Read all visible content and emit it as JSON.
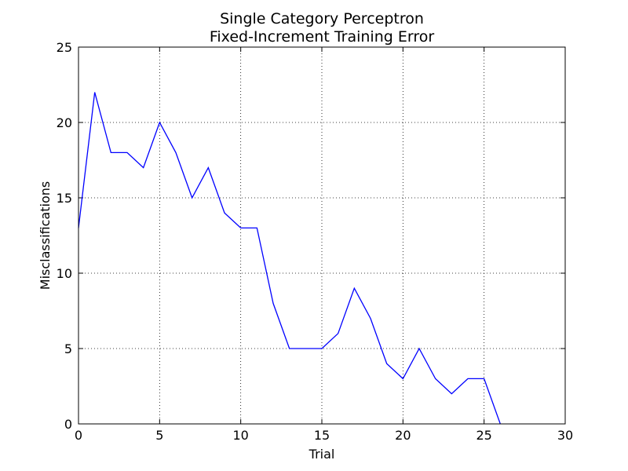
{
  "chart_data": {
    "type": "line",
    "title": "Single Category Perceptron",
    "subtitle": "Fixed-Increment Training Error",
    "xlabel": "Trial",
    "ylabel": "Misclassifications",
    "xlim": [
      0,
      30
    ],
    "ylim": [
      0,
      25
    ],
    "xticks": [
      "0",
      "5",
      "10",
      "15",
      "20",
      "25",
      "30"
    ],
    "yticks": [
      "0",
      "5",
      "10",
      "15",
      "20",
      "25"
    ],
    "grid": true,
    "line_color": "#0000ff",
    "series": [
      {
        "x": [
          0,
          1,
          2,
          3,
          4,
          5,
          6,
          7,
          8,
          9,
          10,
          11,
          12,
          13,
          14,
          15,
          16,
          17,
          18,
          19,
          20,
          21,
          22,
          23,
          24,
          25,
          26
        ],
        "values": [
          13,
          22,
          18,
          18,
          17,
          20,
          18,
          15,
          17,
          14,
          13,
          13,
          8,
          5,
          5,
          5,
          6,
          9,
          7,
          4,
          3,
          5,
          3,
          2,
          3,
          3,
          0
        ]
      }
    ]
  }
}
